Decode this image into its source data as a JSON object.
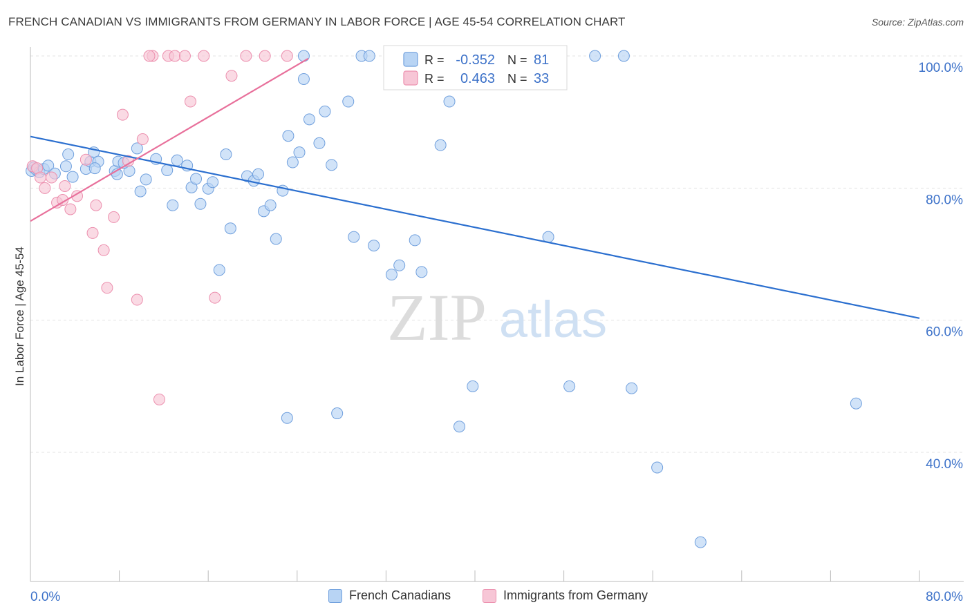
{
  "title": "FRENCH CANADIAN VS IMMIGRANTS FROM GERMANY IN LABOR FORCE | AGE 45-54 CORRELATION CHART",
  "source": "Source: ZipAtlas.com",
  "watermark": {
    "zip": "ZIP",
    "atlas": "atlas"
  },
  "colors": {
    "blue_fill": "#b8d4f4",
    "blue_stroke": "#6f9fdd",
    "blue_line": "#2b6fcf",
    "pink_fill": "#f7c6d6",
    "pink_stroke": "#ec8fae",
    "pink_line": "#e8709b",
    "axis_label": "#3d72c9",
    "grid": "#e3e3e3"
  },
  "legend_stats": [
    {
      "r_label": "R =",
      "r_value": "-0.352",
      "n_label": "N =",
      "n_value": "81"
    },
    {
      "r_label": "R =",
      "r_value": "0.463",
      "n_label": "N =",
      "n_value": "33"
    }
  ],
  "chart_data": {
    "type": "scatter",
    "title": "FRENCH CANADIAN VS IMMIGRANTS FROM GERMANY IN LABOR FORCE | AGE 45-54 CORRELATION CHART",
    "xlabel": "",
    "ylabel": "In Labor Force | Age 45-54",
    "xlim": [
      0,
      80
    ],
    "ylim": [
      18,
      102
    ],
    "x_tick_labels": [
      "0.0%",
      "80.0%"
    ],
    "y_ticks": [
      40,
      60,
      80,
      100
    ],
    "y_tick_labels": [
      "40.0%",
      "60.0%",
      "80.0%",
      "100.0%"
    ],
    "grid": true,
    "legend_position": "top-center",
    "series": [
      {
        "name": "French Canadians",
        "color": "#6f9fdd",
        "trend": {
          "x": [
            0,
            80
          ],
          "y": [
            87.8,
            60.3
          ]
        },
        "points": [
          [
            0.1,
            82.6
          ],
          [
            0.3,
            83.1
          ],
          [
            0.5,
            82.8
          ],
          [
            0.8,
            82.4
          ],
          [
            1.2,
            82.9
          ],
          [
            1.6,
            83.4
          ],
          [
            2.2,
            82.2
          ],
          [
            3.2,
            83.3
          ],
          [
            3.8,
            81.7
          ],
          [
            3.4,
            85.1
          ],
          [
            5.0,
            82.9
          ],
          [
            5.4,
            84.0
          ],
          [
            5.7,
            85.4
          ],
          [
            6.1,
            84.0
          ],
          [
            5.8,
            83.0
          ],
          [
            7.6,
            82.6
          ],
          [
            7.8,
            82.1
          ],
          [
            8.9,
            82.6
          ],
          [
            9.6,
            86.0
          ],
          [
            7.9,
            84.0
          ],
          [
            8.4,
            83.8
          ],
          [
            11.3,
            84.4
          ],
          [
            10.4,
            81.3
          ],
          [
            9.9,
            79.5
          ],
          [
            12.3,
            82.7
          ],
          [
            12.8,
            77.4
          ],
          [
            13.2,
            84.2
          ],
          [
            14.1,
            83.4
          ],
          [
            14.5,
            80.1
          ],
          [
            14.9,
            81.4
          ],
          [
            15.3,
            77.6
          ],
          [
            16.0,
            79.9
          ],
          [
            16.4,
            80.9
          ],
          [
            17.6,
            85.1
          ],
          [
            18.0,
            73.9
          ],
          [
            17.0,
            67.6
          ],
          [
            19.5,
            81.8
          ],
          [
            20.1,
            81.1
          ],
          [
            20.5,
            82.1
          ],
          [
            21.0,
            76.5
          ],
          [
            21.6,
            77.4
          ],
          [
            22.1,
            72.3
          ],
          [
            22.7,
            79.6
          ],
          [
            23.2,
            87.9
          ],
          [
            23.6,
            83.9
          ],
          [
            24.2,
            85.4
          ],
          [
            24.6,
            100.0
          ],
          [
            23.1,
            45.2
          ],
          [
            24.6,
            96.5
          ],
          [
            25.1,
            90.4
          ],
          [
            26.0,
            86.8
          ],
          [
            26.5,
            91.6
          ],
          [
            27.1,
            83.5
          ],
          [
            27.6,
            45.9
          ],
          [
            28.6,
            93.1
          ],
          [
            29.1,
            72.6
          ],
          [
            29.8,
            100.0
          ],
          [
            30.5,
            100.0
          ],
          [
            30.9,
            71.3
          ],
          [
            32.3,
            100.0
          ],
          [
            32.8,
            100.0
          ],
          [
            32.5,
            66.9
          ],
          [
            33.2,
            68.3
          ],
          [
            34.1,
            100.0
          ],
          [
            34.6,
            72.1
          ],
          [
            35.2,
            67.3
          ],
          [
            35.9,
            100.0
          ],
          [
            36.9,
            86.5
          ],
          [
            37.7,
            93.1
          ],
          [
            38.6,
            43.9
          ],
          [
            39.8,
            50.0
          ],
          [
            41.4,
            100.0
          ],
          [
            45.3,
            100.0
          ],
          [
            46.6,
            72.6
          ],
          [
            48.5,
            50.0
          ],
          [
            50.8,
            100.0
          ],
          [
            54.1,
            49.7
          ],
          [
            56.4,
            37.7
          ],
          [
            60.3,
            26.4
          ],
          [
            74.3,
            47.4
          ],
          [
            53.4,
            100.0
          ]
        ]
      },
      {
        "name": "Immigrants from Germany",
        "color": "#ec8fae",
        "trend": {
          "x": [
            0,
            25
          ],
          "y": [
            75.0,
            99.6
          ]
        },
        "points": [
          [
            0.2,
            83.3
          ],
          [
            0.6,
            83.0
          ],
          [
            0.9,
            81.6
          ],
          [
            1.3,
            80.0
          ],
          [
            1.9,
            81.6
          ],
          [
            2.4,
            77.8
          ],
          [
            3.1,
            80.3
          ],
          [
            2.9,
            78.2
          ],
          [
            3.6,
            76.8
          ],
          [
            4.2,
            78.8
          ],
          [
            5.0,
            84.3
          ],
          [
            5.6,
            73.2
          ],
          [
            5.9,
            77.4
          ],
          [
            6.6,
            70.6
          ],
          [
            6.9,
            64.9
          ],
          [
            7.5,
            75.6
          ],
          [
            8.3,
            91.1
          ],
          [
            8.8,
            84.1
          ],
          [
            9.6,
            63.1
          ],
          [
            10.1,
            87.4
          ],
          [
            11.0,
            100.0
          ],
          [
            10.7,
            100.0
          ],
          [
            11.6,
            48.0
          ],
          [
            12.4,
            100.0
          ],
          [
            13.0,
            100.0
          ],
          [
            13.9,
            100.0
          ],
          [
            14.4,
            93.1
          ],
          [
            15.6,
            100.0
          ],
          [
            16.6,
            63.4
          ],
          [
            18.1,
            97.0
          ],
          [
            19.4,
            100.0
          ],
          [
            21.1,
            100.0
          ],
          [
            23.1,
            100.0
          ]
        ]
      }
    ]
  }
}
